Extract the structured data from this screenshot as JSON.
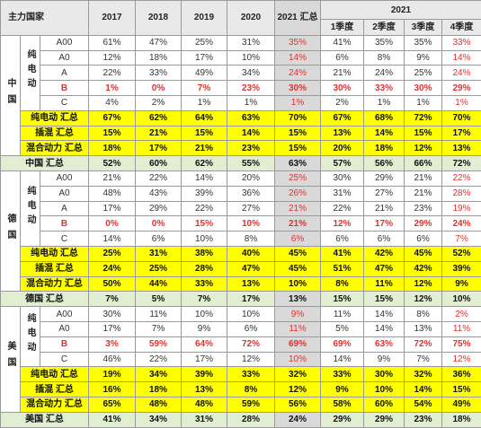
{
  "header": {
    "main_label": "主力国家",
    "years": [
      "2017",
      "2018",
      "2019",
      "2020"
    ],
    "summary_2021": "2021 汇总",
    "group_2021": "2021",
    "quarters": [
      "1季度",
      "2季度",
      "3季度",
      "4季度"
    ]
  },
  "countries": [
    {
      "name": "中国",
      "sub": "纯电动",
      "models": [
        {
          "model": "A00",
          "values": [
            "61%",
            "47%",
            "25%",
            "31%",
            "35%",
            "41%",
            "35%",
            "35%",
            "33%"
          ]
        },
        {
          "model": "A0",
          "values": [
            "12%",
            "18%",
            "17%",
            "10%",
            "14%",
            "6%",
            "8%",
            "9%",
            "14%"
          ]
        },
        {
          "model": "A",
          "values": [
            "22%",
            "33%",
            "49%",
            "34%",
            "24%",
            "21%",
            "24%",
            "25%",
            "24%"
          ]
        },
        {
          "model": "B",
          "values": [
            "1%",
            "0%",
            "7%",
            "23%",
            "30%",
            "30%",
            "33%",
            "30%",
            "29%"
          ]
        },
        {
          "model": "C",
          "values": [
            "4%",
            "2%",
            "1%",
            "1%",
            "1%",
            "2%",
            "1%",
            "1%",
            "1%"
          ]
        }
      ],
      "totals": [
        {
          "label": "纯电动 汇总",
          "values": [
            "67%",
            "62%",
            "64%",
            "63%",
            "70%",
            "67%",
            "68%",
            "72%",
            "70%"
          ]
        },
        {
          "label": "插混 汇总",
          "values": [
            "15%",
            "21%",
            "15%",
            "14%",
            "15%",
            "13%",
            "14%",
            "15%",
            "17%"
          ]
        },
        {
          "label": "混合动力 汇总",
          "values": [
            "18%",
            "17%",
            "21%",
            "23%",
            "15%",
            "20%",
            "18%",
            "12%",
            "13%"
          ]
        }
      ],
      "country_total": {
        "label": "中国 汇总",
        "values": [
          "52%",
          "60%",
          "62%",
          "55%",
          "63%",
          "57%",
          "56%",
          "66%",
          "72%"
        ]
      }
    },
    {
      "name": "德国",
      "sub": "纯电动",
      "models": [
        {
          "model": "A00",
          "values": [
            "21%",
            "22%",
            "14%",
            "20%",
            "25%",
            "30%",
            "29%",
            "21%",
            "22%"
          ]
        },
        {
          "model": "A0",
          "values": [
            "48%",
            "43%",
            "39%",
            "36%",
            "26%",
            "31%",
            "27%",
            "21%",
            "28%"
          ]
        },
        {
          "model": "A",
          "values": [
            "17%",
            "29%",
            "22%",
            "27%",
            "21%",
            "22%",
            "21%",
            "23%",
            "19%"
          ]
        },
        {
          "model": "B",
          "values": [
            "0%",
            "0%",
            "15%",
            "10%",
            "21%",
            "12%",
            "17%",
            "29%",
            "24%"
          ]
        },
        {
          "model": "C",
          "values": [
            "14%",
            "6%",
            "10%",
            "8%",
            "6%",
            "6%",
            "6%",
            "6%",
            "7%"
          ]
        }
      ],
      "totals": [
        {
          "label": "纯电动 汇总",
          "values": [
            "25%",
            "31%",
            "38%",
            "40%",
            "45%",
            "41%",
            "42%",
            "45%",
            "52%"
          ]
        },
        {
          "label": "插混 汇总",
          "values": [
            "24%",
            "25%",
            "28%",
            "47%",
            "45%",
            "51%",
            "47%",
            "42%",
            "39%"
          ]
        },
        {
          "label": "混合动力 汇总",
          "values": [
            "50%",
            "44%",
            "33%",
            "13%",
            "10%",
            "8%",
            "11%",
            "12%",
            "9%"
          ]
        }
      ],
      "country_total": {
        "label": "德国 汇总",
        "values": [
          "7%",
          "5%",
          "7%",
          "17%",
          "13%",
          "15%",
          "15%",
          "12%",
          "10%"
        ]
      }
    },
    {
      "name": "美国",
      "sub": "纯电动",
      "models": [
        {
          "model": "A00",
          "values": [
            "30%",
            "11%",
            "10%",
            "10%",
            "9%",
            "11%",
            "14%",
            "8%",
            "2%"
          ]
        },
        {
          "model": "A0",
          "values": [
            "17%",
            "7%",
            "9%",
            "6%",
            "11%",
            "5%",
            "14%",
            "13%",
            "11%"
          ]
        },
        {
          "model": "B",
          "values": [
            "3%",
            "59%",
            "64%",
            "72%",
            "69%",
            "69%",
            "63%",
            "72%",
            "75%"
          ]
        },
        {
          "model": "C",
          "values": [
            "46%",
            "22%",
            "17%",
            "12%",
            "10%",
            "14%",
            "9%",
            "7%",
            "12%"
          ]
        }
      ],
      "totals": [
        {
          "label": "纯电动 汇总",
          "values": [
            "19%",
            "34%",
            "39%",
            "33%",
            "32%",
            "33%",
            "30%",
            "32%",
            "36%"
          ]
        },
        {
          "label": "插混 汇总",
          "values": [
            "16%",
            "18%",
            "13%",
            "8%",
            "12%",
            "9%",
            "10%",
            "14%",
            "15%"
          ]
        },
        {
          "label": "混合动力 汇总",
          "values": [
            "65%",
            "48%",
            "48%",
            "59%",
            "56%",
            "58%",
            "60%",
            "54%",
            "49%"
          ]
        }
      ],
      "country_total": {
        "label": "美国 汇总",
        "values": [
          "41%",
          "34%",
          "31%",
          "28%",
          "24%",
          "29%",
          "29%",
          "23%",
          "18%"
        ]
      }
    }
  ]
}
